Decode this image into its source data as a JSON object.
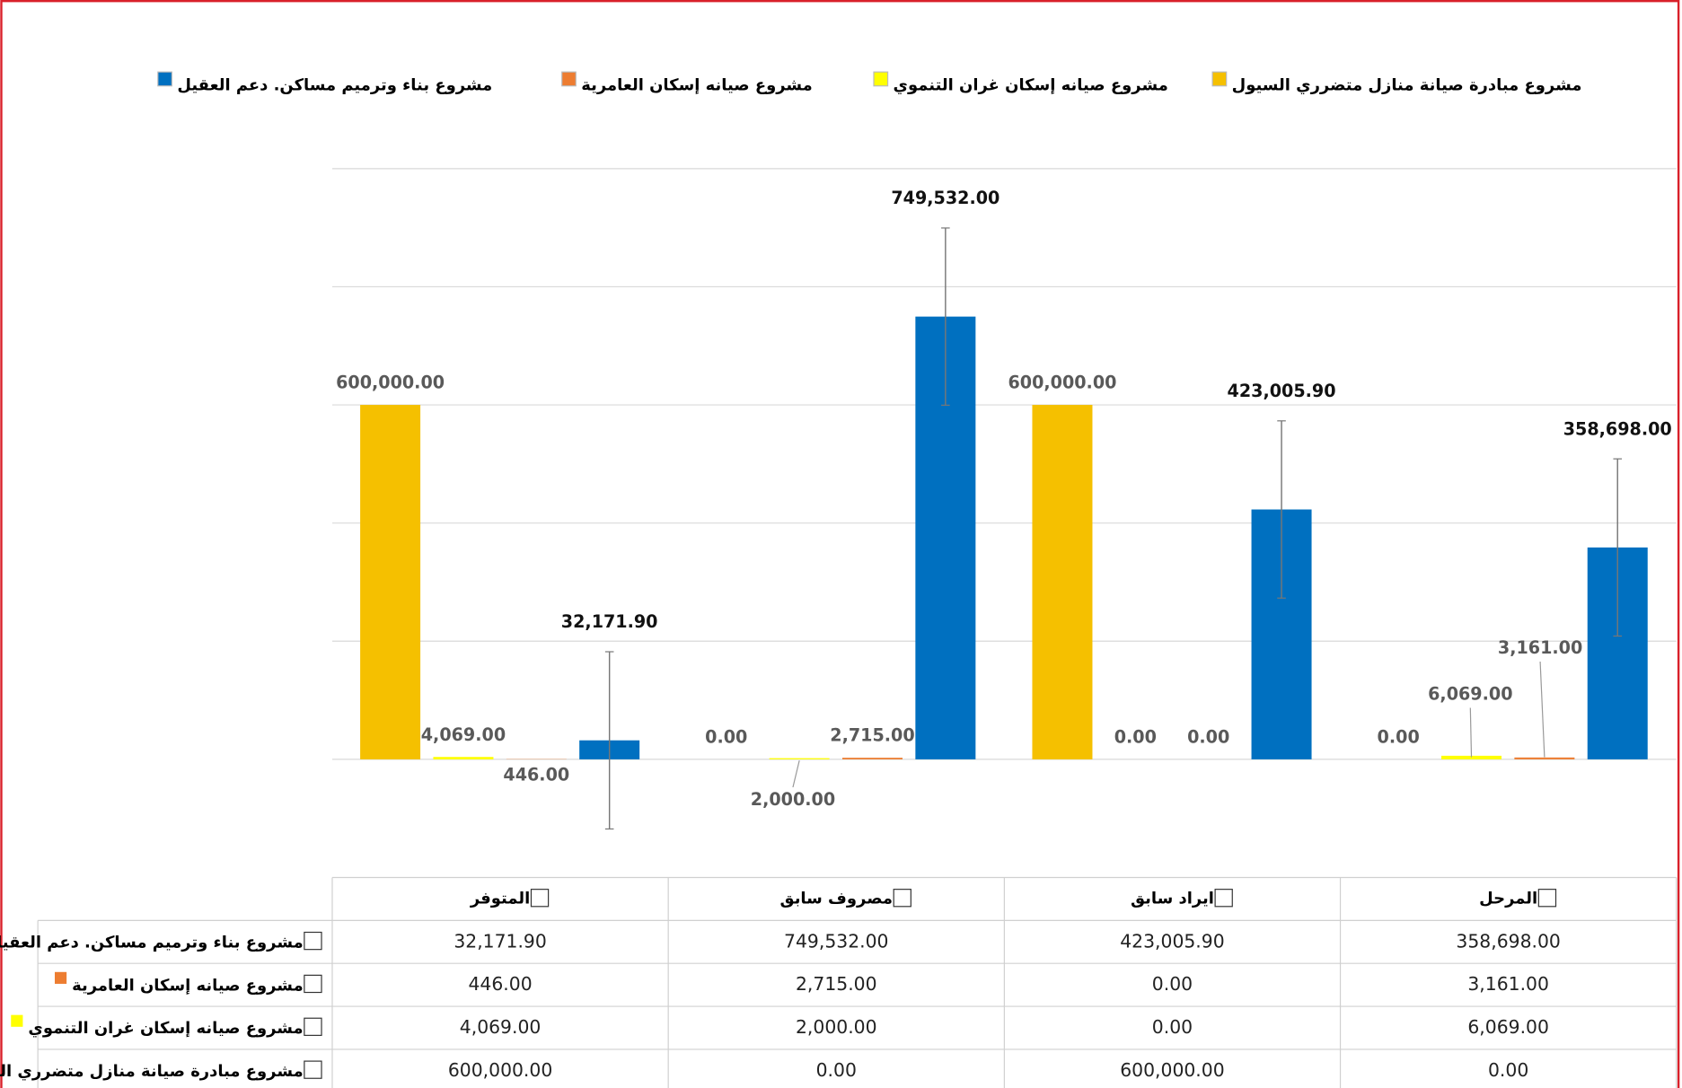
{
  "chart_data": {
    "type": "bar",
    "categories": [
      "المتوفر",
      "مصروف سابق",
      "ايراد سابق",
      "المرحل"
    ],
    "series": [
      {
        "name": "مشروع مبادرة صيانة منازل متضرري السيول",
        "color": "#f5c000",
        "values": [
          600000,
          0,
          600000,
          0
        ],
        "value_labels": [
          "600,000.00",
          "0.00",
          "600,000.00",
          "0.00"
        ]
      },
      {
        "name": "مشروع صيانه إسكان غران التنموي",
        "color": "#ffff00",
        "values": [
          4069,
          2000,
          0,
          6069
        ],
        "value_labels": [
          "4,069.00",
          "2,000.00",
          "0.00",
          "6,069.00"
        ]
      },
      {
        "name": "مشروع صيانه إسكان العامرية",
        "color": "#ed7d31",
        "values": [
          446,
          2715,
          0,
          3161
        ],
        "value_labels": [
          "446.00",
          "2,715.00",
          "0.00",
          "3,161.00"
        ]
      },
      {
        "name": "مشروع بناء وترميم مساكن. دعم العقيل",
        "color": "#0070c0",
        "values": [
          32171.9,
          749532,
          423005.9,
          358698
        ],
        "value_labels": [
          "32,171.90",
          "749,532.00",
          "423,005.90",
          "358,698.00"
        ],
        "errors": [
          150000,
          150000,
          150000,
          150000
        ]
      }
    ],
    "ylim": [
      0,
      1000000
    ],
    "yticks": [
      0,
      200000,
      400000,
      600000,
      800000,
      1000000
    ],
    "grid": true,
    "legend": "top"
  }
}
